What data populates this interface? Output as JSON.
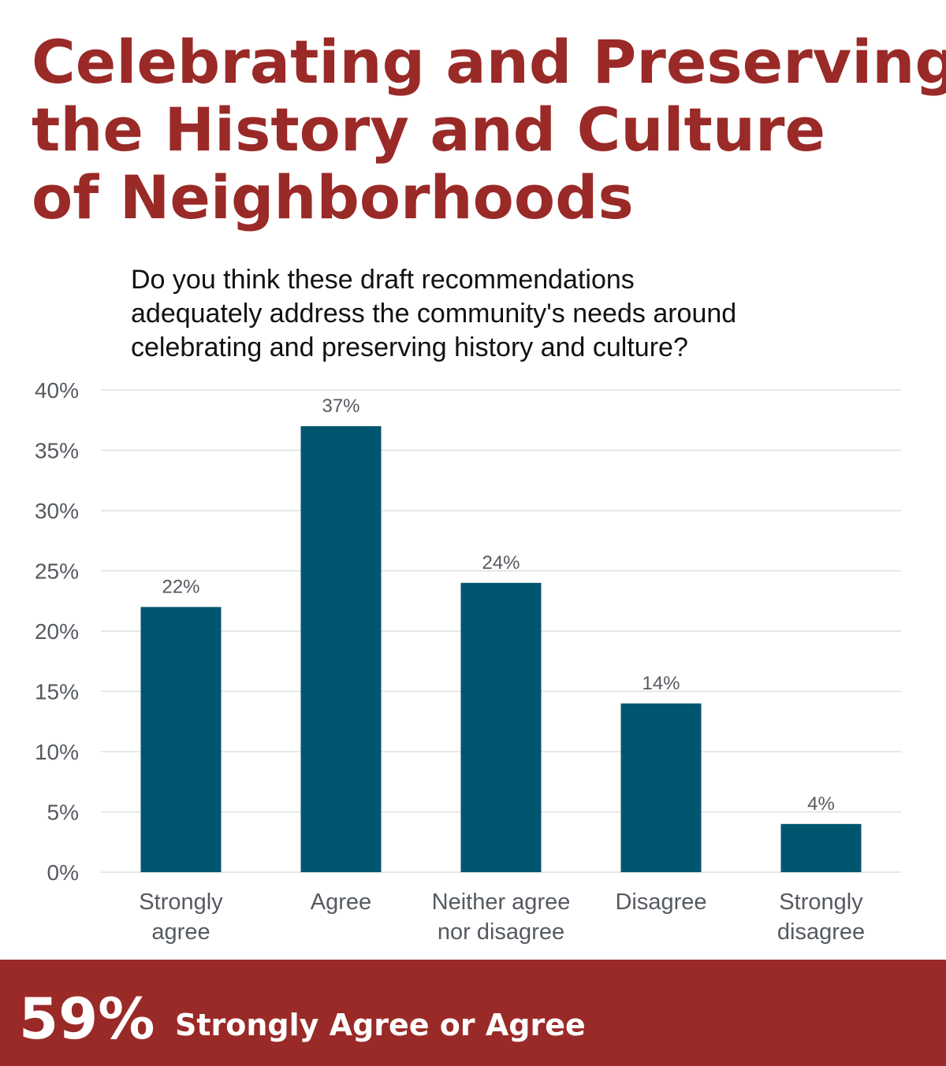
{
  "title_lines": [
    "Celebrating and Preserving",
    "the History and Culture",
    "of Neighborhoods"
  ],
  "question_lines": [
    "Do you think these draft recommendations",
    "adequately address the community's needs around",
    "celebrating and preserving history and culture?"
  ],
  "chart_data": {
    "type": "bar",
    "categories": [
      [
        "Strongly",
        "agree"
      ],
      [
        "Agree"
      ],
      [
        "Neither agree",
        "nor disagree"
      ],
      [
        "Disagree"
      ],
      [
        "Strongly",
        "disagree"
      ]
    ],
    "values": [
      22,
      37,
      24,
      14,
      4
    ],
    "data_labels": [
      "22%",
      "37%",
      "24%",
      "14%",
      "4%"
    ],
    "yticks": [
      "0%",
      "5%",
      "10%",
      "15%",
      "20%",
      "25%",
      "30%",
      "35%",
      "40%"
    ],
    "ylim": [
      0,
      40
    ],
    "grid": true,
    "bar_color": "#00566e",
    "title": "",
    "xlabel": "",
    "ylabel": ""
  },
  "footer": {
    "big_number": "59%",
    "text": "Strongly Agree or Agree"
  },
  "colors": {
    "accent": "#9a2a27",
    "bar": "#00566e",
    "grid": "#dcdfe3",
    "tick_text": "#555a60"
  }
}
